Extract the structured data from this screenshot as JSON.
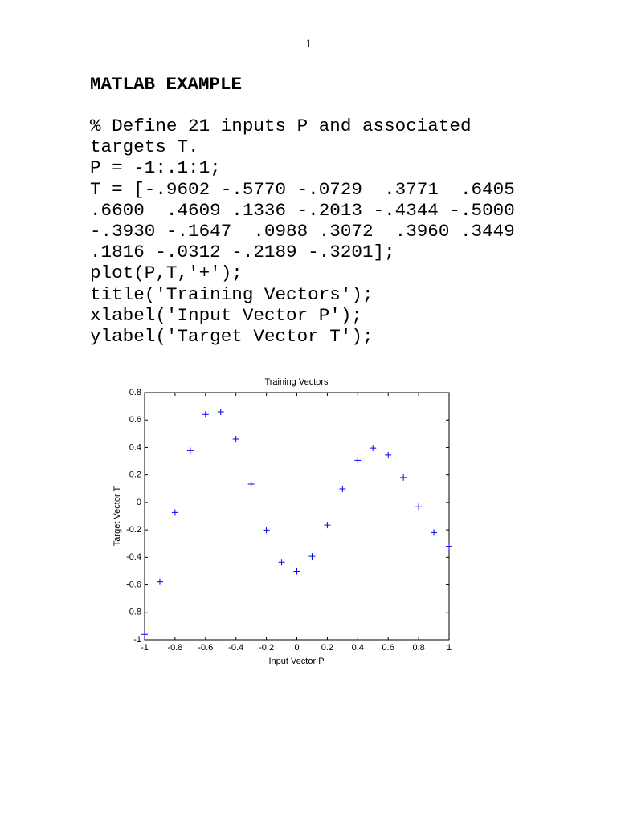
{
  "page_number": "1",
  "heading": "MATLAB EXAMPLE",
  "code_lines": [
    "% Define 21 inputs P and associated",
    "targets T.",
    "P = -1:.1:1;",
    "T = [-.9602 -.5770 -.0729  .3771  .6405",
    ".6600  .4609 .1336 -.2013 -.4344 -.5000",
    "-.3930 -.1647  .0988 .3072  .3960 .3449",
    ".1816 -.0312 -.2189 -.3201];",
    "plot(P,T,'+');",
    "title('Training Vectors');",
    "xlabel('Input Vector P');",
    "ylabel('Target Vector T');"
  ],
  "chart_data": {
    "type": "scatter",
    "title": "Training Vectors",
    "x_label": "Input Vector P",
    "y_label": "Target Vector T",
    "color": "#0000ff",
    "marker": "+",
    "x": [
      -1,
      -0.9,
      -0.8,
      -0.7,
      -0.6,
      -0.5,
      -0.4,
      -0.3,
      -0.2,
      -0.1,
      0,
      0.1,
      0.2,
      0.3,
      0.4,
      0.5,
      0.6,
      0.7,
      0.8,
      0.9,
      1
    ],
    "values": [
      -0.9602,
      -0.577,
      -0.0729,
      0.3771,
      0.6405,
      0.66,
      0.4609,
      0.1336,
      -0.2013,
      -0.4344,
      -0.5,
      -0.393,
      -0.1647,
      0.0988,
      0.3072,
      0.396,
      0.3449,
      0.1816,
      -0.0312,
      -0.2189,
      -0.3201
    ],
    "xlim": [
      -1,
      1
    ],
    "ylim": [
      -1,
      0.8
    ],
    "xticks": [
      -1,
      -0.8,
      -0.6,
      -0.4,
      -0.2,
      0,
      0.2,
      0.4,
      0.6,
      0.8,
      1
    ],
    "yticks": [
      -1,
      -0.8,
      -0.6,
      -0.4,
      -0.2,
      0,
      0.2,
      0.4,
      0.6,
      0.8
    ]
  }
}
